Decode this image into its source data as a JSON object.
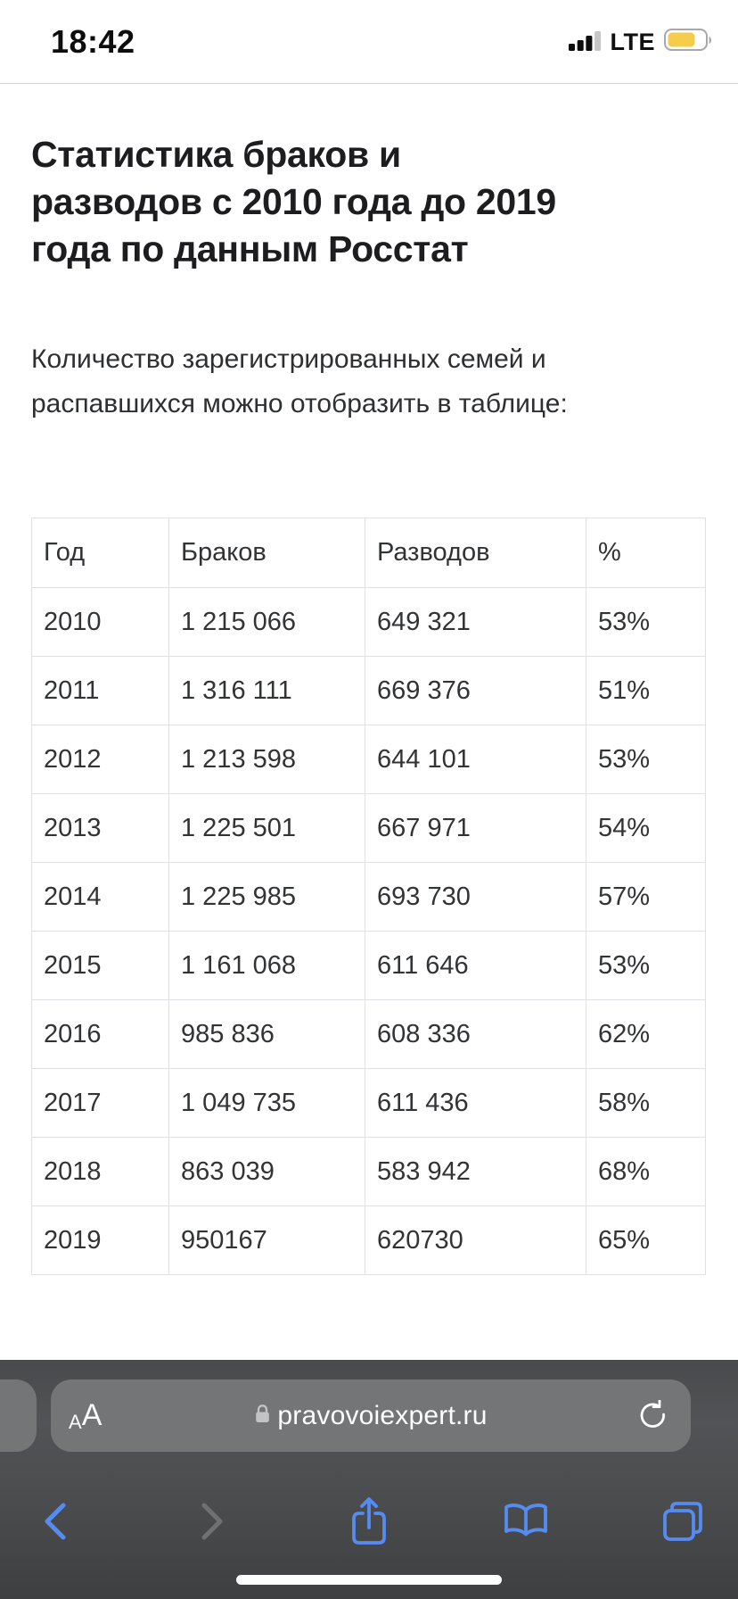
{
  "status_bar": {
    "time": "18:42",
    "network": "LTE",
    "signal_bars_filled": 3,
    "signal_bars_total": 4,
    "battery_level_visual": "75%"
  },
  "article": {
    "title": "Статистика браков и разводов с 2010 года до 2019 года по данным Росстат",
    "title_lines": [
      "Статистика браков и",
      "разводов с 2010 года до 2019",
      "года по данным Росстат"
    ],
    "intro_lines": [
      "Количество зарегистрированных семей и",
      "распавшихся можно отобразить в таблице:"
    ],
    "table": {
      "headers": [
        "Год",
        "Браков",
        "Разводов",
        "%"
      ],
      "rows": [
        [
          "2010",
          "1 215 066",
          "649 321",
          "53%"
        ],
        [
          "2011",
          "1 316 111",
          "669 376",
          "51%"
        ],
        [
          "2012",
          "1 213 598",
          "644 101",
          "53%"
        ],
        [
          "2013",
          "1 225 501",
          "667 971",
          "54%"
        ],
        [
          "2014",
          "1 225 985",
          "693 730",
          "57%"
        ],
        [
          "2015",
          "1 161 068",
          "611 646",
          "53%"
        ],
        [
          "2016",
          "985 836",
          "608 336",
          "62%"
        ],
        [
          "2017",
          "1 049 735",
          "611 436",
          "58%"
        ],
        [
          "2018",
          "863 039",
          "583 942",
          "68%"
        ],
        [
          "2019",
          "950167",
          "620730",
          "65%"
        ]
      ]
    }
  },
  "browser_chrome": {
    "reader_button_small": "A",
    "reader_button_large": "A",
    "url": "pravovoiexpert.ru"
  },
  "colors": {
    "accent_blue": "#568CF2",
    "battery_yellow": "#F5CD4A",
    "url_pill_gray": "#747577",
    "toolbar_background": "#4a4c4e"
  }
}
